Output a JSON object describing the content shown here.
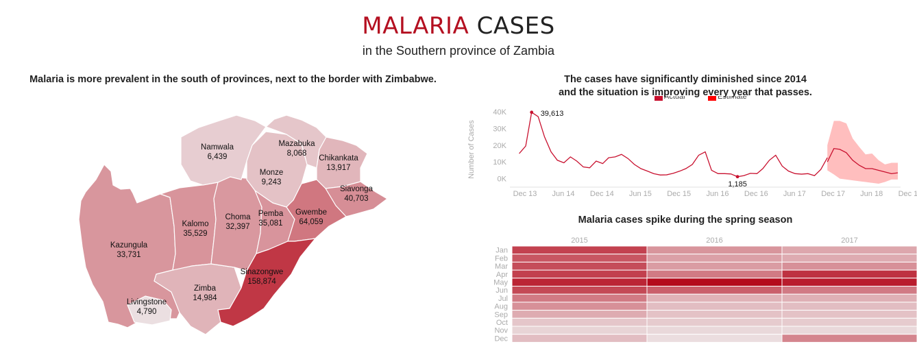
{
  "header": {
    "title_accent": "MALARIA",
    "title_rest": "CASES",
    "subtitle": "in the Southern province of Zambia"
  },
  "map_panel": {
    "heading": "Malaria is more prevalent in the south of provinces, next to the border with Zimbabwe.",
    "districts": [
      {
        "name": "Namwala",
        "value_label": "6,439",
        "cases": 6439
      },
      {
        "name": "Mazabuka",
        "value_label": "8,068",
        "cases": 8068
      },
      {
        "name": "Chikankata",
        "value_label": "13,917",
        "cases": 13917
      },
      {
        "name": "Monze",
        "value_label": "9,243",
        "cases": 9243
      },
      {
        "name": "Siavonga",
        "value_label": "40,703",
        "cases": 40703
      },
      {
        "name": "Kalomo",
        "value_label": "35,529",
        "cases": 35529
      },
      {
        "name": "Choma",
        "value_label": "32,397",
        "cases": 32397
      },
      {
        "name": "Pemba",
        "value_label": "35,081",
        "cases": 35081
      },
      {
        "name": "Gwembe",
        "value_label": "64,059",
        "cases": 64059
      },
      {
        "name": "Kazungula",
        "value_label": "33,731",
        "cases": 33731
      },
      {
        "name": "Sinazongwe",
        "value_label": "158,874",
        "cases": 158874
      },
      {
        "name": "Zimba",
        "value_label": "14,984",
        "cases": 14984
      },
      {
        "name": "Livingstone",
        "value_label": "4,790",
        "cases": 4790
      }
    ]
  },
  "line_panel": {
    "heading_line1": "The cases have significantly diminished since 2014",
    "heading_line2": "and the situation is improving every year that passes."
  },
  "heat_panel": {
    "heading": "Malaria cases spike during the spring season"
  },
  "colors": {
    "accent": "#b40f20",
    "actual": "#c8102e",
    "estimate_band": "#ffb3b3",
    "estimate_legend": "#ff0000"
  },
  "chart_data": [
    {
      "type": "line",
      "ylabel": "Number of Cases",
      "ylim": [
        -3000,
        42000
      ],
      "yticks": [
        0,
        10000,
        20000,
        30000,
        40000
      ],
      "ytick_labels": [
        "0K",
        "10K",
        "20K",
        "30K",
        "40K"
      ],
      "xticks": [
        "2013-12-01",
        "2014-06-01",
        "2014-12-01",
        "2015-06-01",
        "2015-12-01",
        "2016-06-01",
        "2016-12-01",
        "2017-06-01",
        "2017-12-01",
        "2018-06-01",
        "2018-12-01"
      ],
      "xtick_labels": [
        "Dec 13",
        "Jun 14",
        "Dec 14",
        "Jun 15",
        "Dec 15",
        "Jun 16",
        "Dec 16",
        "Jun 17",
        "Dec 17",
        "Jun 18",
        "Dec 18"
      ],
      "legend": [
        "Actual",
        "Estimate"
      ],
      "annotations": [
        {
          "x": "2014-03-01",
          "y": 39613,
          "text": "39,613"
        },
        {
          "x": "2016-11-01",
          "y": 1185,
          "text": "1,185"
        }
      ],
      "series": [
        {
          "name": "Actual",
          "x": [
            "2014-01-01",
            "2014-02-01",
            "2014-03-01",
            "2014-04-01",
            "2014-05-01",
            "2014-06-01",
            "2014-07-01",
            "2014-08-01",
            "2014-09-01",
            "2014-10-01",
            "2014-11-01",
            "2014-12-01",
            "2015-01-01",
            "2015-02-01",
            "2015-03-01",
            "2015-04-01",
            "2015-05-01",
            "2015-06-01",
            "2015-07-01",
            "2015-08-01",
            "2015-09-01",
            "2015-10-01",
            "2015-11-01",
            "2015-12-01",
            "2016-01-01",
            "2016-02-01",
            "2016-03-01",
            "2016-04-01",
            "2016-05-01",
            "2016-06-01",
            "2016-07-01",
            "2016-08-01",
            "2016-09-01",
            "2016-10-01",
            "2016-11-01",
            "2016-12-01",
            "2017-01-01",
            "2017-02-01",
            "2017-03-01",
            "2017-04-01",
            "2017-05-01",
            "2017-06-01",
            "2017-07-01",
            "2017-08-01",
            "2017-09-01",
            "2017-10-01",
            "2017-11-01",
            "2017-12-01",
            "2018-01-01"
          ],
          "y": [
            15000,
            19500,
            39613,
            37000,
            25000,
            16000,
            11000,
            9500,
            13000,
            10500,
            7000,
            6500,
            10500,
            9000,
            12500,
            13000,
            14500,
            12000,
            8500,
            6000,
            4500,
            3000,
            2200,
            2300,
            3200,
            4500,
            6000,
            8500,
            14000,
            16000,
            5000,
            3000,
            3000,
            2800,
            1185,
            1800,
            3200,
            3000,
            6000,
            11000,
            14000,
            7500,
            4500,
            3000,
            2700,
            3000,
            1800,
            5500,
            12500
          ]
        },
        {
          "name": "Estimate",
          "x": [
            "2018-01-01",
            "2018-02-01",
            "2018-03-01",
            "2018-04-01",
            "2018-05-01",
            "2018-06-01",
            "2018-07-01",
            "2018-08-01",
            "2018-09-01",
            "2018-10-01",
            "2018-11-01",
            "2018-12-01"
          ],
          "y": [
            10000,
            18000,
            17500,
            15500,
            11000,
            8000,
            6000,
            6000,
            5000,
            4000,
            3000,
            3500
          ],
          "lower": [
            5000,
            2500,
            0,
            -500,
            -1000,
            -1500,
            -2000,
            -2500,
            -3000,
            -2000,
            -500,
            -500
          ],
          "upper": [
            20000,
            34500,
            34500,
            33000,
            24000,
            19000,
            14500,
            15000,
            11000,
            8500,
            9500,
            9500
          ]
        }
      ]
    },
    {
      "type": "heatmap",
      "columns": [
        "2015",
        "2016",
        "2017"
      ],
      "rows": [
        "Jan",
        "Feb",
        "Mar",
        "Apr",
        "May",
        "Jun",
        "Jul",
        "Aug",
        "Sep",
        "Oct",
        "Nov",
        "Dec"
      ],
      "intensity_scale": [
        0,
        1
      ],
      "values": [
        [
          0.75,
          0.38,
          0.3
        ],
        [
          0.66,
          0.33,
          0.28
        ],
        [
          0.7,
          0.35,
          0.4
        ],
        [
          0.76,
          0.5,
          0.82
        ],
        [
          0.88,
          1.0,
          0.92
        ],
        [
          0.72,
          0.62,
          0.5
        ],
        [
          0.5,
          0.25,
          0.26
        ],
        [
          0.4,
          0.2,
          0.2
        ],
        [
          0.28,
          0.18,
          0.18
        ],
        [
          0.16,
          0.14,
          0.14
        ],
        [
          0.1,
          0.08,
          0.08
        ],
        [
          0.2,
          0.06,
          0.45
        ]
      ]
    }
  ]
}
